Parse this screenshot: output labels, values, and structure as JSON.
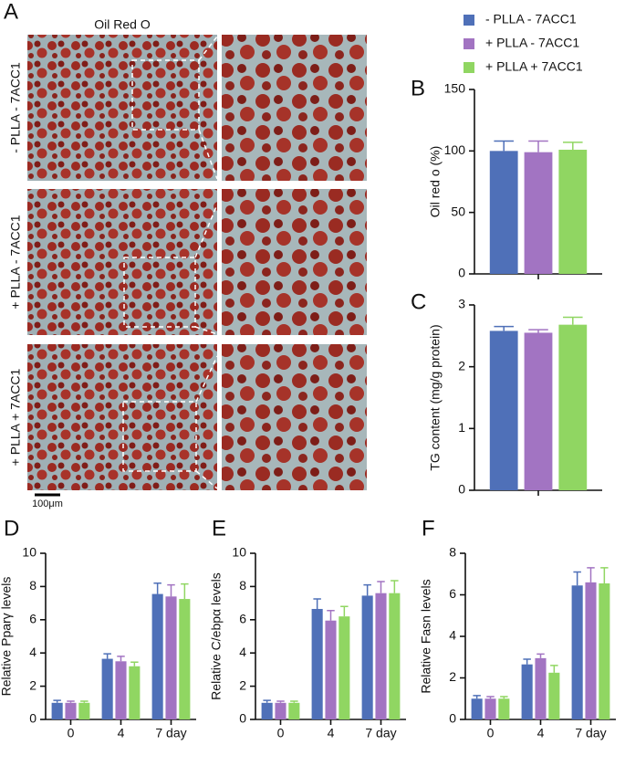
{
  "panel_a": {
    "letter": "A",
    "title": "Oil Red O",
    "rows": [
      "- PLLA - 7ACC1",
      "+ PLLA - 7ACC1",
      "+ PLLA + 7ACC1"
    ],
    "scale_bar": "100μm"
  },
  "chart_data": [
    {
      "type": "bar",
      "letter": "B",
      "y_label": "Oil red o (%)",
      "categories": [
        null
      ],
      "ylim": [
        0,
        150
      ],
      "yticks": [
        0,
        50,
        100,
        150
      ],
      "series": [
        {
          "name": "- PLLA - 7ACC1",
          "color": "#4f70b8",
          "values": [
            100
          ],
          "errors": [
            8
          ]
        },
        {
          "name": "+ PLLA - 7ACC1",
          "color": "#a274c2",
          "values": [
            99
          ],
          "errors": [
            9
          ]
        },
        {
          "name": "+ PLLA + 7ACC1",
          "color": "#90d662",
          "values": [
            101
          ],
          "errors": [
            6
          ]
        }
      ]
    },
    {
      "type": "bar",
      "letter": "C",
      "y_label": "TG content (mg/g protein)",
      "categories": [
        null
      ],
      "ylim": [
        0,
        3
      ],
      "yticks": [
        0,
        1,
        2,
        3
      ],
      "series": [
        {
          "values": [
            2.58
          ],
          "errors": [
            0.07
          ]
        },
        {
          "values": [
            2.55
          ],
          "errors": [
            0.05
          ]
        },
        {
          "values": [
            2.68
          ],
          "errors": [
            0.12
          ]
        }
      ]
    },
    {
      "type": "bar",
      "letter": "D",
      "y_label": "Relative Pparγ levels",
      "categories": [
        "0",
        "4",
        "7 day"
      ],
      "ylim": [
        0,
        10
      ],
      "yticks": [
        0,
        2,
        4,
        6,
        8,
        10
      ],
      "series": [
        {
          "values": [
            1,
            3.65,
            7.55
          ],
          "errors": [
            0.15,
            0.3,
            0.65
          ]
        },
        {
          "values": [
            1,
            3.5,
            7.4
          ],
          "errors": [
            0.1,
            0.3,
            0.7
          ]
        },
        {
          "values": [
            1,
            3.2,
            7.25
          ],
          "errors": [
            0.1,
            0.25,
            0.9
          ]
        }
      ]
    },
    {
      "type": "bar",
      "letter": "E",
      "y_label": "Relative C/ebpα levels",
      "categories": [
        "0",
        "4",
        "7 day"
      ],
      "ylim": [
        0,
        10
      ],
      "yticks": [
        0,
        2,
        4,
        6,
        8,
        10
      ],
      "series": [
        {
          "values": [
            1,
            6.65,
            7.45
          ],
          "errors": [
            0.15,
            0.6,
            0.65
          ]
        },
        {
          "values": [
            1,
            5.95,
            7.6
          ],
          "errors": [
            0.1,
            0.6,
            0.7
          ]
        },
        {
          "values": [
            1,
            6.2,
            7.6
          ],
          "errors": [
            0.1,
            0.6,
            0.75
          ]
        }
      ]
    },
    {
      "type": "bar",
      "letter": "F",
      "y_label": "Relative Fasn levels",
      "categories": [
        "0",
        "4",
        "7 day"
      ],
      "ylim": [
        0,
        8
      ],
      "yticks": [
        0,
        2,
        4,
        6,
        8
      ],
      "series": [
        {
          "values": [
            1,
            2.65,
            6.45
          ],
          "errors": [
            0.15,
            0.25,
            0.65
          ]
        },
        {
          "values": [
            1,
            2.95,
            6.6
          ],
          "errors": [
            0.1,
            0.2,
            0.7
          ]
        },
        {
          "values": [
            1,
            2.25,
            6.55
          ],
          "errors": [
            0.1,
            0.35,
            0.75
          ]
        }
      ]
    }
  ]
}
